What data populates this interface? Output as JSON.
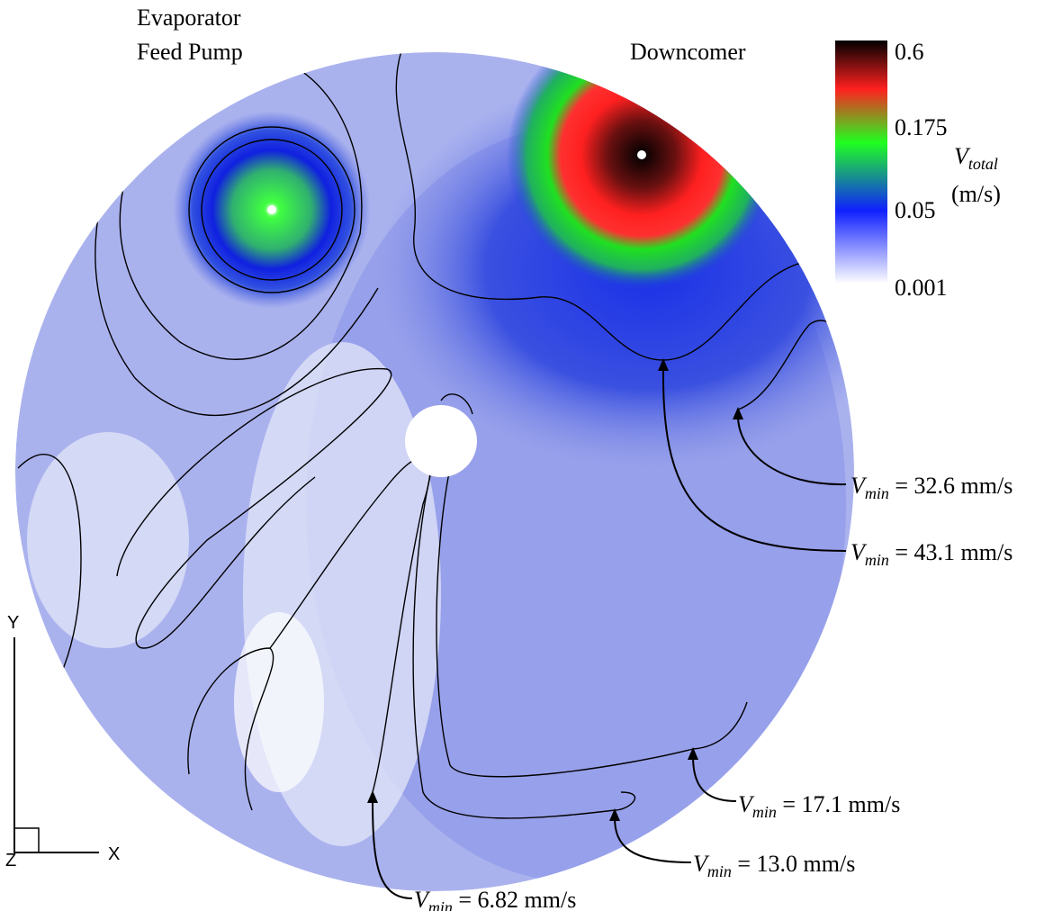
{
  "labels": {
    "feed_pump": [
      "Evaporator",
      "Feed Pump"
    ],
    "downcomer": "Downcomer"
  },
  "colorbar": {
    "ticks": [
      "0.6",
      "0.175",
      "0.05",
      "0.001"
    ],
    "title": {
      "symbol": "V",
      "subscript": "total",
      "unit": "(m/s)"
    }
  },
  "axes": {
    "y": "Y",
    "x": "X",
    "z": "Z"
  },
  "annotations": [
    {
      "symbol": "V",
      "subscript": "min",
      "text": " = 32.6 mm/s"
    },
    {
      "symbol": "V",
      "subscript": "min",
      "text": " = 43.1 mm/s"
    },
    {
      "symbol": "V",
      "subscript": "min",
      "text": " = 17.1 mm/s"
    },
    {
      "symbol": "V",
      "subscript": "min",
      "text": " = 13.0 mm/s"
    },
    {
      "symbol": "V",
      "subscript": "min",
      "text": " = 6.82 mm/s"
    }
  ]
}
